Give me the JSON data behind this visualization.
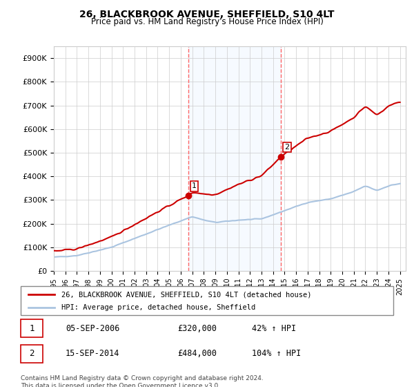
{
  "title": "26, BLACKBROOK AVENUE, SHEFFIELD, S10 4LT",
  "subtitle": "Price paid vs. HM Land Registry's House Price Index (HPI)",
  "hpi_color": "#aac4e0",
  "price_color": "#cc0000",
  "marker_color": "#cc0000",
  "shaded_color": "#ddeeff",
  "vline_color": "#ff6666",
  "ylabel_prefix": "£",
  "ylim": [
    0,
    950000
  ],
  "yticks": [
    0,
    100000,
    200000,
    300000,
    400000,
    500000,
    600000,
    700000,
    800000,
    900000
  ],
  "ytick_labels": [
    "£0",
    "£100K",
    "£200K",
    "£300K",
    "£400K",
    "£500K",
    "£600K",
    "£700K",
    "£800K",
    "£900K"
  ],
  "sale1_date_num": 2006.67,
  "sale1_price": 320000,
  "sale2_date_num": 2014.7,
  "sale2_price": 484000,
  "legend_line1": "26, BLACKBROOK AVENUE, SHEFFIELD, S10 4LT (detached house)",
  "legend_line2": "HPI: Average price, detached house, Sheffield",
  "table_row1": [
    "1",
    "05-SEP-2006",
    "£320,000",
    "42% ↑ HPI"
  ],
  "table_row2": [
    "2",
    "15-SEP-2014",
    "£484,000",
    "104% ↑ HPI"
  ],
  "footnote": "Contains HM Land Registry data © Crown copyright and database right 2024.\nThis data is licensed under the Open Government Licence v3.0.",
  "background_color": "#ffffff",
  "grid_color": "#cccccc"
}
